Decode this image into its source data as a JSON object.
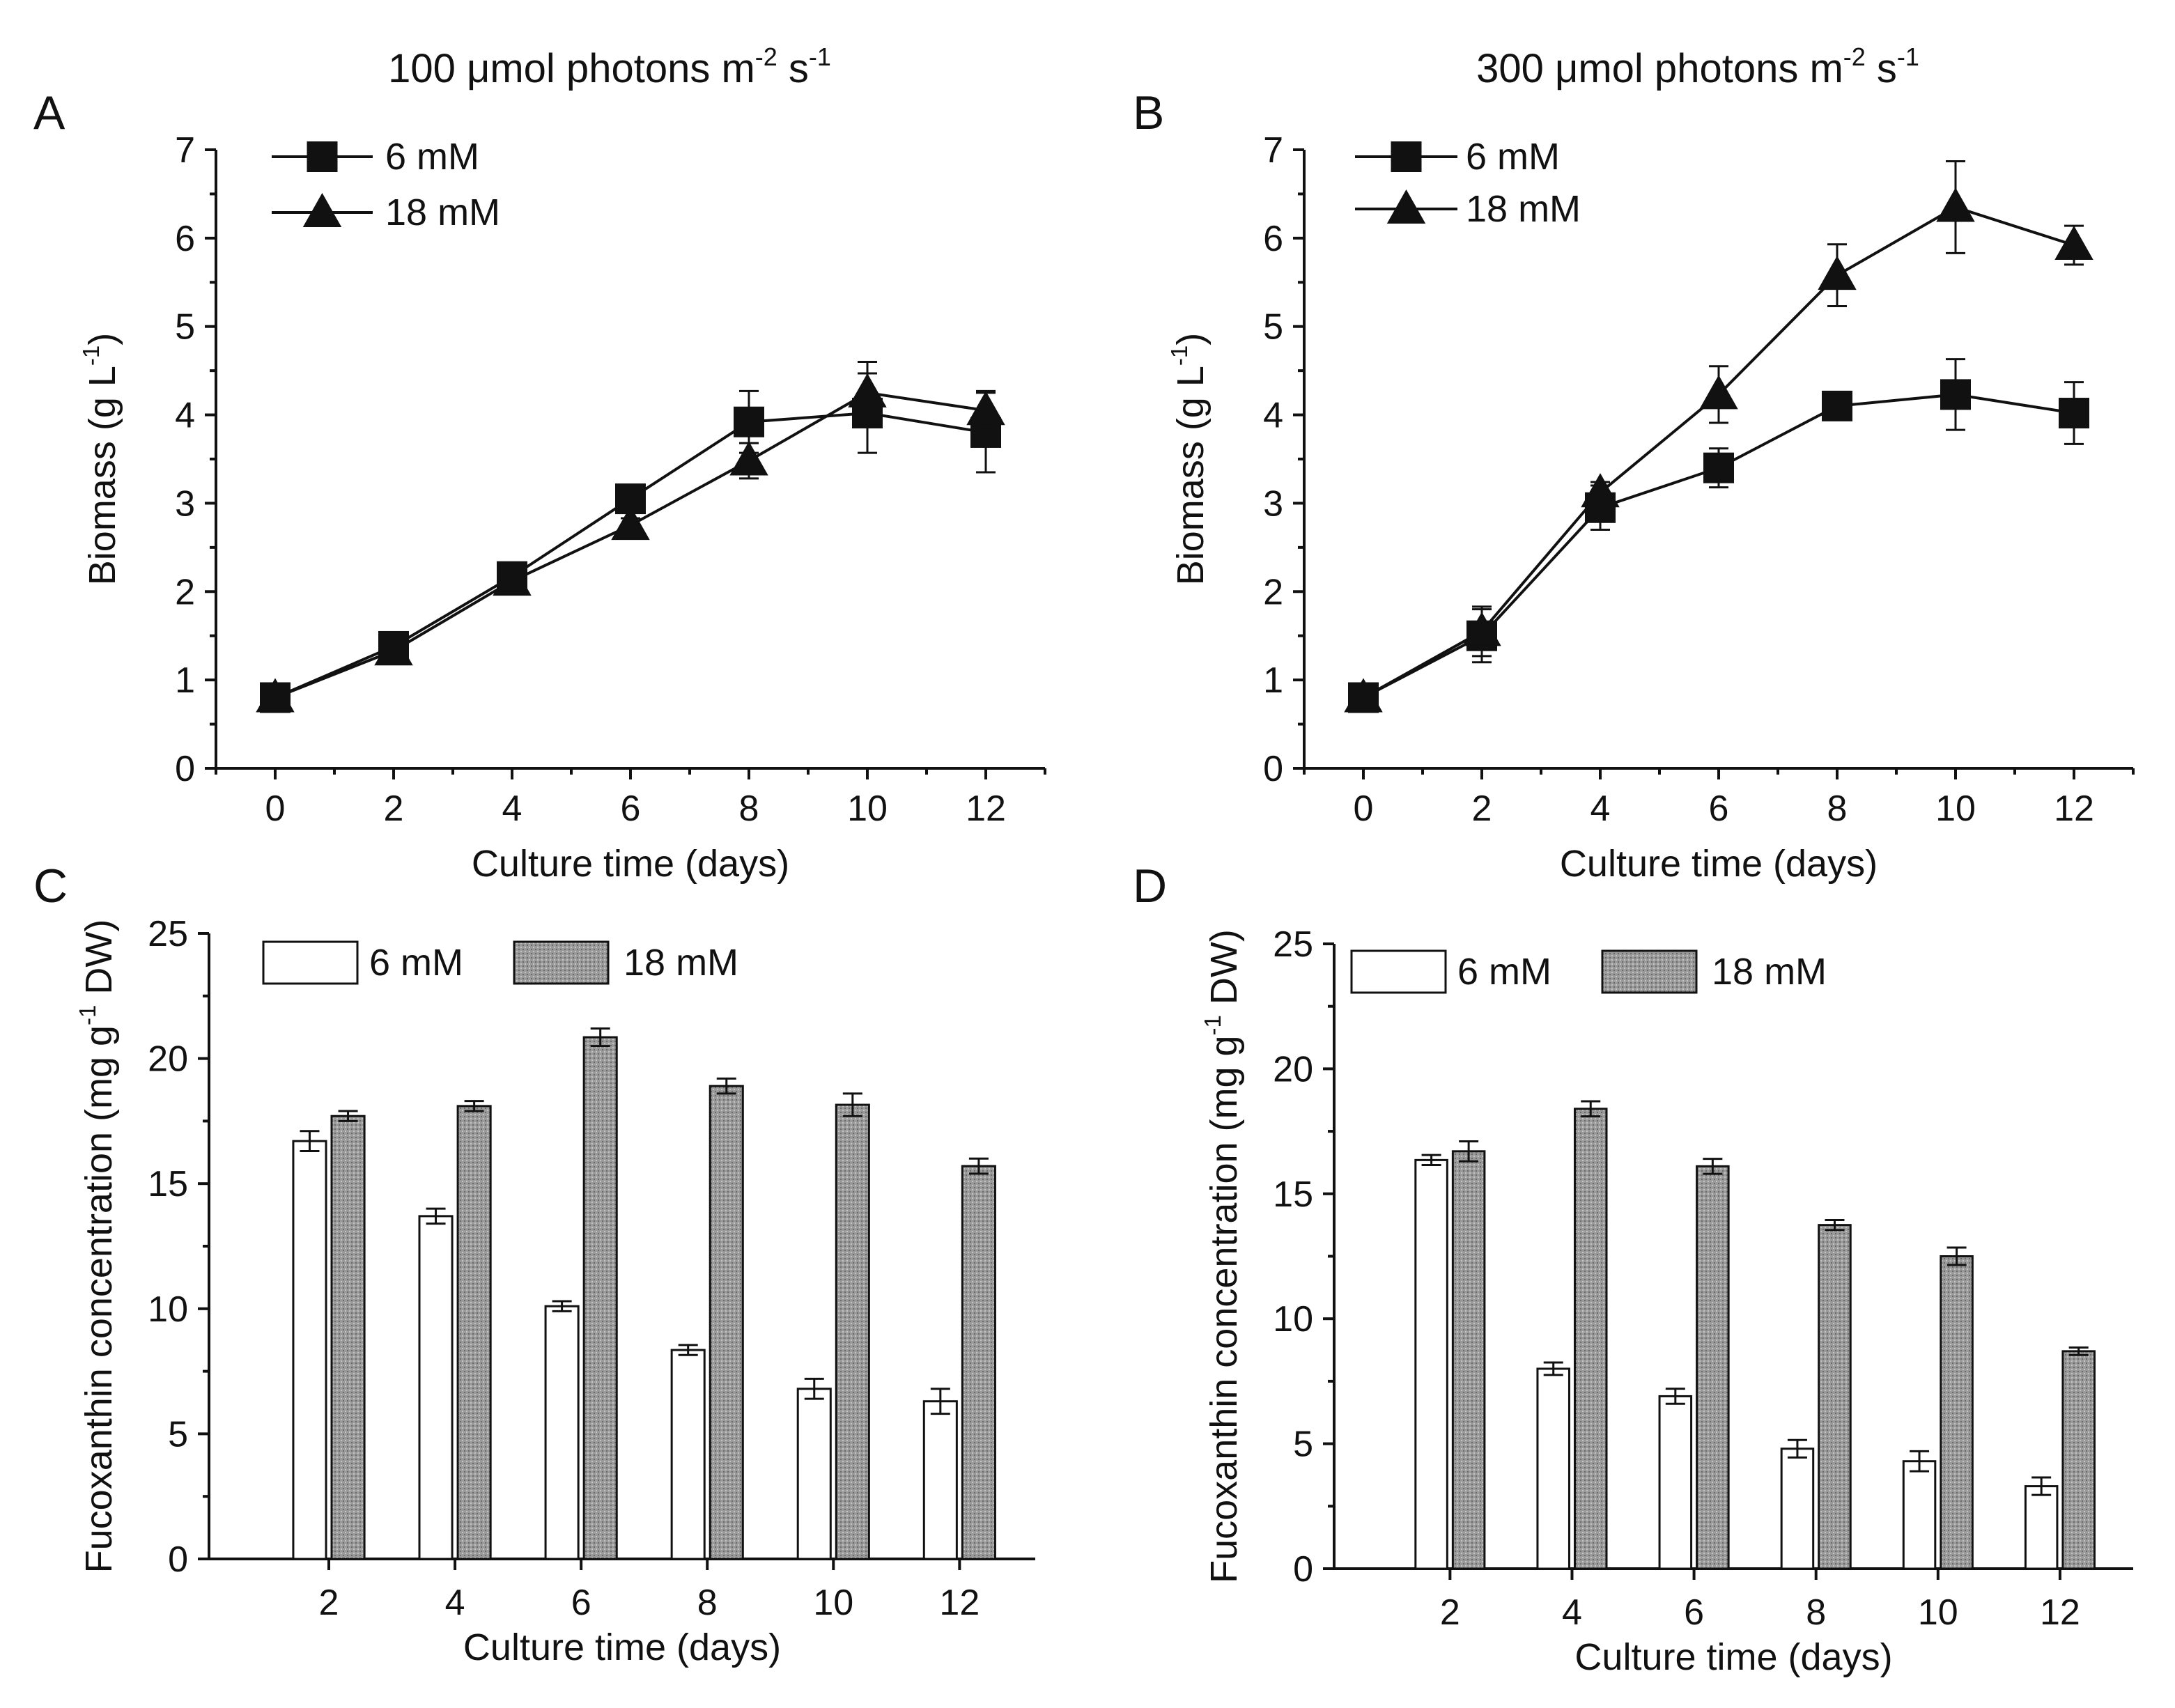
{
  "chart_data": [
    {
      "panel": "A",
      "type": "line",
      "title_main": "100 μmol photons m",
      "title_sup1": "-2",
      "title_mid": " s",
      "title_sup2": "-1",
      "xlabel": "Culture time (days)",
      "ylabel_main": "Biomass (g L",
      "ylabel_sup": "-1",
      "ylabel_end": ")",
      "xlim": [
        -1,
        13
      ],
      "ylim": [
        0,
        7
      ],
      "xticks": [
        0,
        2,
        4,
        6,
        8,
        10,
        12
      ],
      "yticks": [
        0,
        1,
        2,
        3,
        4,
        5,
        6,
        7
      ],
      "legend": [
        "6 mM",
        "18 mM"
      ],
      "x": [
        0,
        2,
        4,
        6,
        8,
        10,
        12
      ],
      "series": [
        {
          "name": "6 mM",
          "marker": "square",
          "values": [
            0.8,
            1.38,
            2.17,
            3.05,
            3.92,
            4.02,
            3.8
          ],
          "errors": [
            0.05,
            0.06,
            0.07,
            0.1,
            0.35,
            0.45,
            0.45
          ]
        },
        {
          "name": "18 mM",
          "marker": "triangle",
          "values": [
            0.8,
            1.33,
            2.12,
            2.75,
            3.48,
            4.25,
            4.05
          ],
          "errors": [
            0.05,
            0.06,
            0.07,
            0.08,
            0.2,
            0.35,
            0.22
          ]
        }
      ]
    },
    {
      "panel": "B",
      "type": "line",
      "title_main": "300 μmol photons m",
      "title_sup1": "-2",
      "title_mid": " s",
      "title_sup2": "-1",
      "xlabel": "Culture time (days)",
      "ylabel_main": "Biomass (g L",
      "ylabel_sup": "-1",
      "ylabel_end": ")",
      "xlim": [
        -1,
        13
      ],
      "ylim": [
        0,
        7
      ],
      "xticks": [
        0,
        2,
        4,
        6,
        8,
        10,
        12
      ],
      "yticks": [
        0,
        1,
        2,
        3,
        4,
        5,
        6,
        7
      ],
      "legend": [
        "6 mM",
        "18 mM"
      ],
      "x": [
        0,
        2,
        4,
        6,
        8,
        10,
        12
      ],
      "series": [
        {
          "name": "6 mM",
          "marker": "square",
          "values": [
            0.8,
            1.5,
            2.95,
            3.4,
            4.1,
            4.23,
            4.02
          ],
          "errors": [
            0.05,
            0.3,
            0.25,
            0.22,
            0.1,
            0.4,
            0.35
          ]
        },
        {
          "name": "18 mM",
          "marker": "triangle",
          "values": [
            0.8,
            1.55,
            3.12,
            4.23,
            5.58,
            6.35,
            5.92
          ],
          "errors": [
            0.05,
            0.28,
            0.12,
            0.32,
            0.35,
            0.52,
            0.22
          ]
        }
      ]
    },
    {
      "panel": "C",
      "type": "bar",
      "xlabel": "Culture time (days)",
      "ylabel_main": "Fucoxanthin concentration (mg g",
      "ylabel_sup": "-1",
      "ylabel_end": " DW)",
      "ylim": [
        0,
        25
      ],
      "yticks": [
        0,
        5,
        10,
        15,
        20,
        25
      ],
      "categories": [
        "2",
        "4",
        "6",
        "8",
        "10",
        "12"
      ],
      "legend": [
        "6 mM",
        "18 mM"
      ],
      "series": [
        {
          "name": "6 mM",
          "fill": "open",
          "values": [
            16.7,
            13.7,
            10.1,
            8.35,
            6.8,
            6.3
          ],
          "errors": [
            0.4,
            0.3,
            0.2,
            0.2,
            0.4,
            0.5
          ]
        },
        {
          "name": "18 mM",
          "fill": "stippled",
          "values": [
            17.7,
            18.1,
            20.85,
            18.9,
            18.15,
            15.7
          ],
          "errors": [
            0.2,
            0.2,
            0.35,
            0.3,
            0.45,
            0.3
          ]
        }
      ]
    },
    {
      "panel": "D",
      "type": "bar",
      "xlabel": "Culture time (days)",
      "ylabel_main": "Fucoxanthin concentration (mg g",
      "ylabel_sup": "-1",
      "ylabel_end": " DW)",
      "ylim": [
        0,
        25
      ],
      "yticks": [
        0,
        5,
        10,
        15,
        20,
        25
      ],
      "categories": [
        "2",
        "4",
        "6",
        "8",
        "10",
        "12"
      ],
      "legend": [
        "6 mM",
        "18 mM"
      ],
      "series": [
        {
          "name": "6 mM",
          "fill": "open",
          "values": [
            16.35,
            8.0,
            6.9,
            4.8,
            4.3,
            3.3
          ],
          "errors": [
            0.2,
            0.25,
            0.3,
            0.35,
            0.4,
            0.35
          ]
        },
        {
          "name": "18 mM",
          "fill": "stippled",
          "values": [
            16.7,
            18.4,
            16.1,
            13.75,
            12.5,
            8.7
          ],
          "errors": [
            0.4,
            0.3,
            0.3,
            0.2,
            0.35,
            0.15
          ]
        }
      ]
    }
  ]
}
